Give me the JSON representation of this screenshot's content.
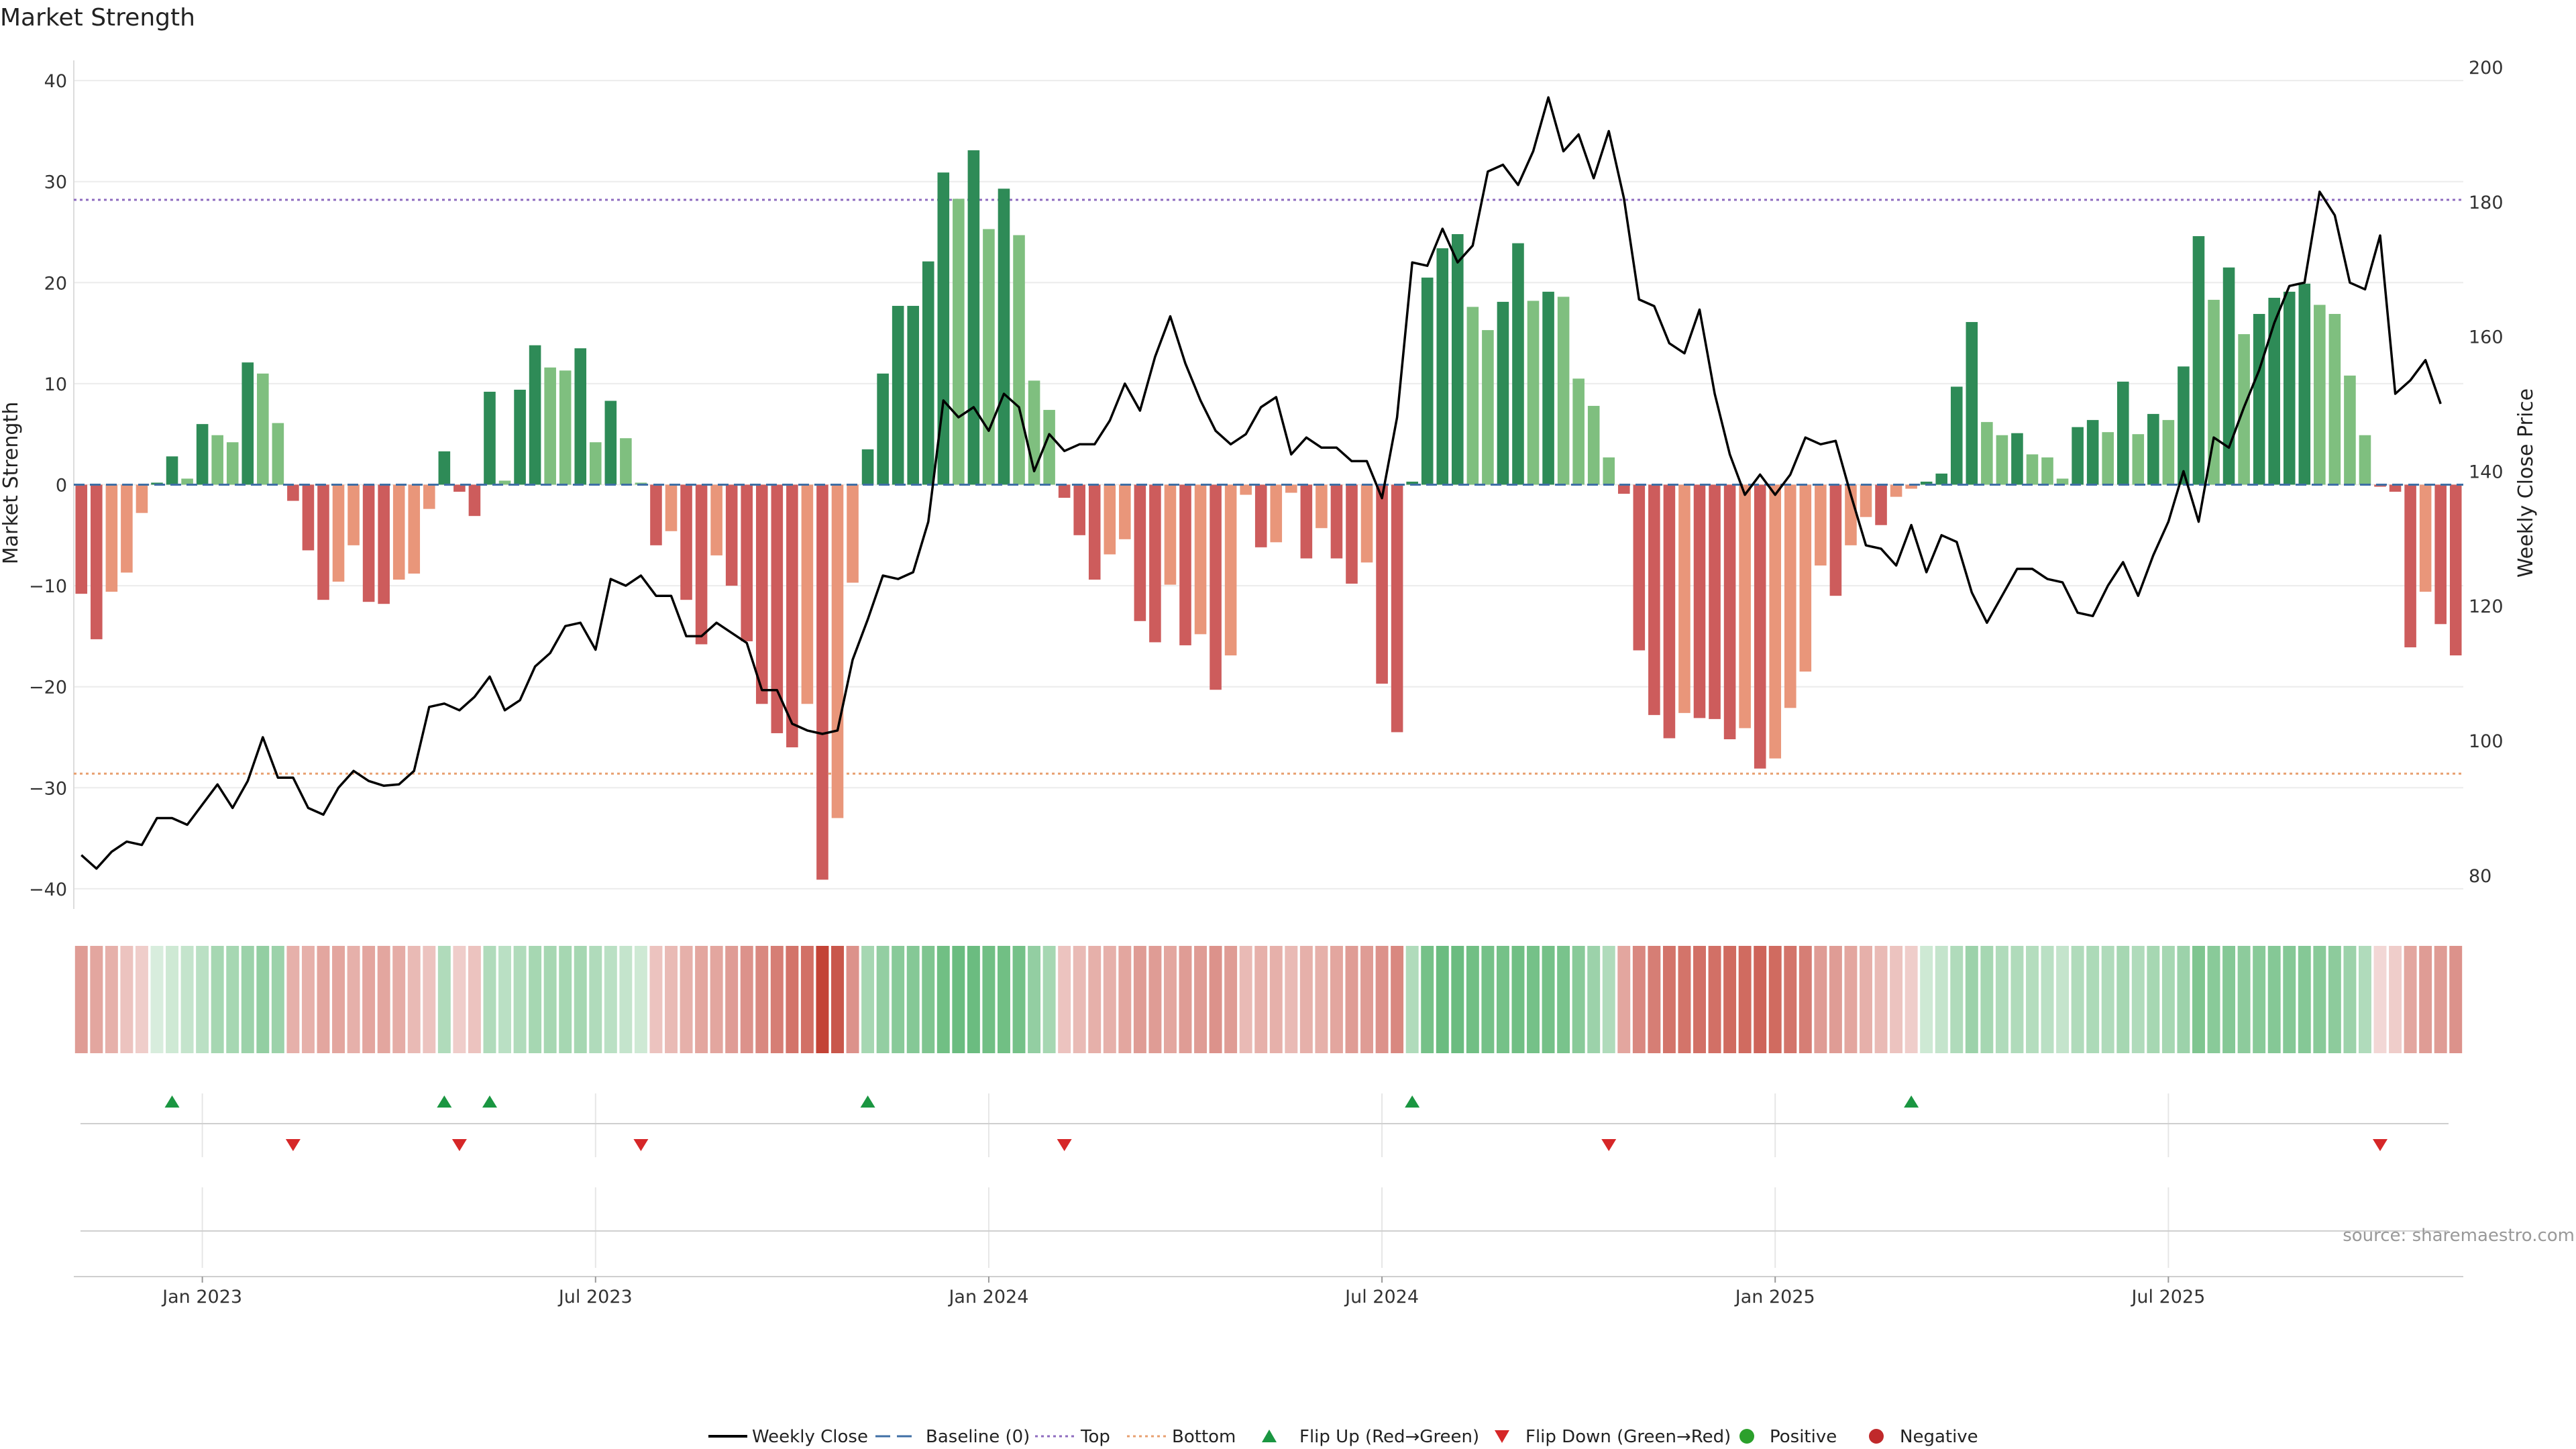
{
  "chart_data": {
    "type": "bar",
    "title": "Market Strength",
    "ylabel": "Market Strength",
    "ylabel_right": "Weekly Close Price",
    "ylim": [
      -42,
      42
    ],
    "ylim_right": [
      75,
      201
    ],
    "yticks": [
      40,
      30,
      20,
      10,
      0,
      -10,
      -20,
      -30,
      -40
    ],
    "yticks_labels": [
      "40",
      "30",
      "20",
      "10",
      "0",
      "−10",
      "−20",
      "−30",
      "−40"
    ],
    "yticks_right": [
      200,
      180,
      160,
      140,
      120,
      100,
      80
    ],
    "top_line": 28.2,
    "bottom_line": -28.6,
    "x_ticks": [
      {
        "label": "Jan 2023",
        "week": 8.5
      },
      {
        "label": "Jul 2023",
        "week": 34.5
      },
      {
        "label": "Jan 2024",
        "week": 60.5
      },
      {
        "label": "Jul 2024",
        "week": 86.5
      },
      {
        "label": "Jan 2025",
        "week": 112.5
      },
      {
        "label": "Jul 2025",
        "week": 138.5
      }
    ],
    "strength": [
      -10.8,
      -15.3,
      -10.6,
      -8.7,
      -2.8,
      0.2,
      2.8,
      0.6,
      6.0,
      4.9,
      4.2,
      12.1,
      11.0,
      6.1,
      -1.6,
      -6.5,
      -11.4,
      -9.6,
      -6.0,
      -11.6,
      -11.8,
      -9.4,
      -8.8,
      -2.4,
      3.3,
      -0.7,
      -3.1,
      9.2,
      0.4,
      9.4,
      13.8,
      11.6,
      11.3,
      13.5,
      4.2,
      8.3,
      4.6,
      0.2,
      -6.0,
      -4.6,
      -11.4,
      -15.8,
      -7.0,
      -10.0,
      -15.5,
      -21.7,
      -24.6,
      -26.0,
      -21.7,
      -39.1,
      -33.0,
      -9.7,
      3.5,
      11.0,
      17.7,
      17.7,
      22.1,
      30.9,
      28.3,
      33.1,
      25.3,
      29.3,
      24.7,
      10.3,
      7.4,
      -1.3,
      -5.0,
      -9.4,
      -6.9,
      -5.4,
      -13.5,
      -15.6,
      -9.9,
      -15.9,
      -14.8,
      -20.3,
      -16.9,
      -1.0,
      -6.2,
      -5.7,
      -0.8,
      -7.3,
      -4.3,
      -7.3,
      -9.8,
      -7.7,
      -19.7,
      -24.5,
      0.3,
      20.5,
      23.4,
      24.8,
      17.6,
      15.3,
      18.1,
      23.9,
      18.2,
      19.1,
      18.6,
      10.5,
      7.8,
      2.7,
      -0.9,
      -16.4,
      -22.8,
      -25.1,
      -22.6,
      -23.1,
      -23.2,
      -25.2,
      -24.1,
      -28.1,
      -27.1,
      -22.1,
      -18.5,
      -8.0,
      -11.0,
      -6.0,
      -3.2,
      -4.0,
      -1.2,
      -0.4,
      0.3,
      1.1,
      9.7,
      16.1,
      6.2,
      4.9,
      5.1,
      3.0,
      2.7,
      0.6,
      5.7,
      6.4,
      5.2,
      10.2,
      5.0,
      7.0,
      6.4,
      11.7,
      24.6,
      18.3,
      21.5,
      14.9,
      16.9,
      18.5,
      19.1,
      19.9,
      17.8,
      16.9,
      10.8,
      4.9,
      -0.2,
      -0.7,
      -16.1,
      -10.6,
      -13.8,
      -16.9
    ],
    "close": [
      83,
      81,
      83.5,
      85,
      84.5,
      88.5,
      88.5,
      87.5,
      90.5,
      93.5,
      90,
      94,
      100.5,
      94.5,
      94.5,
      90,
      89,
      93,
      95.5,
      94,
      93.3,
      93.5,
      95.5,
      105,
      105.5,
      104.5,
      106.5,
      109.5,
      104.5,
      106,
      111,
      113,
      117,
      117.5,
      113.5,
      124,
      123,
      124.5,
      121.5,
      121.5,
      115.5,
      115.5,
      117.5,
      116,
      114.5,
      107.5,
      107.5,
      102.5,
      101.5,
      101,
      101.5,
      112,
      118,
      124.5,
      124,
      125,
      132.5,
      150.5,
      148,
      149.5,
      146,
      151.5,
      149.5,
      140,
      145.5,
      143,
      144,
      144,
      147.5,
      153,
      149,
      157,
      163,
      156,
      150.5,
      146,
      144,
      145.5,
      149.5,
      151,
      142.5,
      145,
      143.5,
      143.5,
      141.5,
      141.5,
      136,
      148,
      171,
      170.5,
      176,
      171,
      173.5,
      184.5,
      185.5,
      182.5,
      187.5,
      195.5,
      187.5,
      190,
      183.5,
      190.5,
      180.5,
      165.5,
      164.5,
      159,
      157.5,
      164,
      151.5,
      142.5,
      136.5,
      139.5,
      136.5,
      139.5,
      145,
      144,
      144.5,
      136.5,
      129,
      128.5,
      126,
      132,
      125,
      130.5,
      129.5,
      122,
      117.5,
      121.5,
      125.5,
      125.5,
      124,
      123.5,
      119,
      118.5,
      123,
      126.5,
      121.5,
      127.5,
      132.5,
      140,
      132.5,
      145,
      143.5,
      149.5,
      155,
      162,
      167.5,
      168,
      181.5,
      178,
      168,
      167,
      175,
      151.5,
      153.5,
      156.5,
      150
    ],
    "heat_alpha": [
      0.5,
      0.45,
      0.4,
      0.3,
      0.25,
      0.2,
      0.25,
      0.3,
      0.35,
      0.45,
      0.45,
      0.5,
      0.55,
      0.5,
      0.4,
      0.4,
      0.45,
      0.45,
      0.4,
      0.45,
      0.45,
      0.42,
      0.35,
      0.3,
      0.4,
      0.25,
      0.3,
      0.4,
      0.35,
      0.4,
      0.45,
      0.45,
      0.45,
      0.45,
      0.4,
      0.35,
      0.3,
      0.25,
      0.3,
      0.35,
      0.4,
      0.45,
      0.45,
      0.5,
      0.55,
      0.6,
      0.65,
      0.7,
      0.72,
      0.95,
      0.85,
      0.55,
      0.45,
      0.55,
      0.6,
      0.62,
      0.65,
      0.72,
      0.75,
      0.75,
      0.72,
      0.72,
      0.7,
      0.55,
      0.45,
      0.3,
      0.35,
      0.4,
      0.4,
      0.45,
      0.5,
      0.5,
      0.45,
      0.5,
      0.5,
      0.55,
      0.5,
      0.35,
      0.4,
      0.4,
      0.35,
      0.4,
      0.4,
      0.45,
      0.5,
      0.5,
      0.55,
      0.6,
      0.4,
      0.7,
      0.75,
      0.75,
      0.72,
      0.7,
      0.7,
      0.72,
      0.7,
      0.7,
      0.68,
      0.6,
      0.5,
      0.4,
      0.45,
      0.6,
      0.65,
      0.7,
      0.7,
      0.72,
      0.72,
      0.75,
      0.75,
      0.78,
      0.75,
      0.7,
      0.65,
      0.5,
      0.5,
      0.45,
      0.4,
      0.35,
      0.3,
      0.25,
      0.25,
      0.3,
      0.4,
      0.5,
      0.45,
      0.4,
      0.4,
      0.38,
      0.35,
      0.3,
      0.4,
      0.42,
      0.4,
      0.45,
      0.4,
      0.45,
      0.45,
      0.5,
      0.65,
      0.6,
      0.62,
      0.58,
      0.6,
      0.62,
      0.62,
      0.62,
      0.6,
      0.58,
      0.5,
      0.4,
      0.2,
      0.25,
      0.45,
      0.5,
      0.5,
      0.55
    ],
    "flip_up_weeks": [
      6,
      24,
      27,
      52,
      88,
      121
    ],
    "flip_down_weeks": [
      14,
      25,
      37,
      65,
      101,
      152
    ],
    "legend": [
      {
        "label": "Weekly Close",
        "kind": "line",
        "color": "#000000"
      },
      {
        "label": "Baseline (0)",
        "kind": "dash",
        "color": "#3f6fa5"
      },
      {
        "label": "Top",
        "kind": "dot",
        "color": "#8e6bbf"
      },
      {
        "label": "Bottom",
        "kind": "dot",
        "color": "#e8a070"
      },
      {
        "label": "Flip Up (Red→Green)",
        "kind": "up",
        "color": "#1a9641"
      },
      {
        "label": "Flip Down (Green→Red)",
        "kind": "down",
        "color": "#d62728"
      },
      {
        "label": "Positive",
        "kind": "dot-marker",
        "color": "#2ca02c"
      },
      {
        "label": "Negative",
        "kind": "dot-marker",
        "color": "#c0292b"
      }
    ]
  },
  "colors": {
    "pos_dark": "#2e8b57",
    "pos_light": "#7fbf7f",
    "neg_dark": "#cd5c5c",
    "neg_light": "#e9967a",
    "heat_pos": "#3aa655",
    "heat_neg": "#c0392b",
    "top_line": "#8e6bbf",
    "bottom_line": "#e8a070",
    "baseline": "#3f6fa5",
    "close_line": "#000000",
    "flip_up": "#1a9641",
    "flip_down": "#d62728"
  },
  "source_text": "source: sharemaestro.com"
}
